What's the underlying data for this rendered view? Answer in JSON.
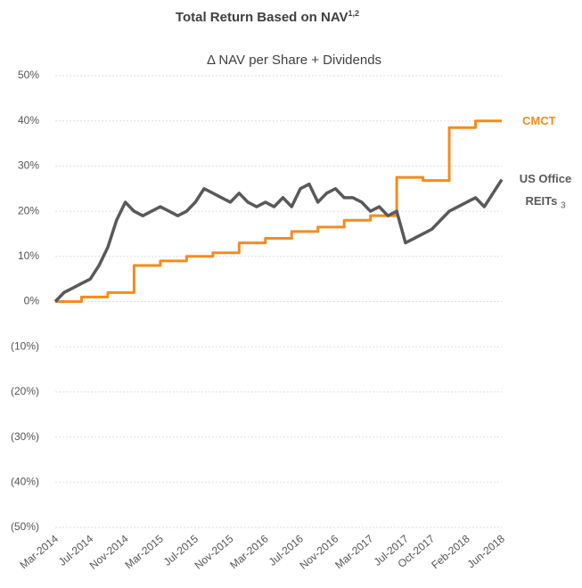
{
  "chart_data": {
    "type": "line",
    "title": "Total Return Based on NAV",
    "title_superscript": "1,2",
    "subtitle": "Δ NAV per Share + Dividends",
    "x": [
      "Mar-2014",
      "Apr-2014",
      "May-2014",
      "Jun-2014",
      "Jul-2014",
      "Aug-2014",
      "Sep-2014",
      "Oct-2014",
      "Nov-2014",
      "Dec-2014",
      "Jan-2015",
      "Feb-2015",
      "Mar-2015",
      "Apr-2015",
      "May-2015",
      "Jun-2015",
      "Jul-2015",
      "Aug-2015",
      "Sep-2015",
      "Oct-2015",
      "Nov-2015",
      "Dec-2015",
      "Jan-2016",
      "Feb-2016",
      "Mar-2016",
      "Apr-2016",
      "May-2016",
      "Jun-2016",
      "Jul-2016",
      "Aug-2016",
      "Sep-2016",
      "Oct-2016",
      "Nov-2016",
      "Dec-2016",
      "Jan-2017",
      "Feb-2017",
      "Mar-2017",
      "Apr-2017",
      "May-2017",
      "Jun-2017",
      "Jul-2017",
      "Aug-2017",
      "Sep-2017",
      "Oct-2017",
      "Nov-2017",
      "Dec-2017",
      "Jan-2018",
      "Feb-2018",
      "Mar-2018",
      "Apr-2018",
      "May-2018",
      "Jun-2018"
    ],
    "xticks": [
      "Mar-2014",
      "Jul-2014",
      "Nov-2014",
      "Mar-2015",
      "Jul-2015",
      "Nov-2015",
      "Mar-2016",
      "Jul-2016",
      "Nov-2016",
      "Mar-2017",
      "Jul-2017",
      "Oct-2017",
      "Feb-2018",
      "Jun-2018"
    ],
    "series": [
      {
        "name": "CMCT",
        "color": "#f28c1e",
        "step": true,
        "values": [
          0,
          0,
          0,
          1,
          1,
          1,
          2,
          2,
          2,
          8,
          8,
          8,
          9,
          9,
          9,
          10,
          10,
          10,
          10.8,
          10.8,
          10.8,
          13,
          13,
          13,
          14,
          14,
          14,
          15.5,
          15.5,
          15.5,
          16.5,
          16.5,
          16.5,
          18,
          18,
          18,
          19,
          19,
          19,
          27.5,
          27.5,
          27.5,
          26.8,
          26.8,
          26.8,
          38.5,
          38.5,
          38.5,
          40,
          40,
          40,
          40
        ]
      },
      {
        "name": "US Office REITs",
        "color": "#595959",
        "footnote": "3",
        "values": [
          0,
          2,
          3,
          4,
          5,
          8,
          12,
          18,
          22,
          20,
          19,
          20,
          21,
          20,
          19,
          20,
          22,
          25,
          24,
          23,
          22,
          24,
          22,
          21,
          22,
          21,
          23,
          21,
          25,
          26,
          22,
          24,
          25,
          23,
          23,
          22,
          20,
          21,
          19,
          20,
          13,
          14,
          15,
          16,
          18,
          20,
          21,
          22,
          23,
          21,
          24,
          27
        ]
      }
    ],
    "ylim": [
      -50,
      50
    ],
    "yticks": [
      {
        "value": -50,
        "label": "(50%)"
      },
      {
        "value": -40,
        "label": "(40%)"
      },
      {
        "value": -30,
        "label": "(30%)"
      },
      {
        "value": -20,
        "label": "(20%)"
      },
      {
        "value": -10,
        "label": "(10%)"
      },
      {
        "value": 0,
        "label": "0%"
      },
      {
        "value": 10,
        "label": "10%"
      },
      {
        "value": 20,
        "label": "20%"
      },
      {
        "value": 30,
        "label": "30%"
      },
      {
        "value": 40,
        "label": "40%"
      },
      {
        "value": 50,
        "label": "50%"
      }
    ],
    "grid": true
  }
}
